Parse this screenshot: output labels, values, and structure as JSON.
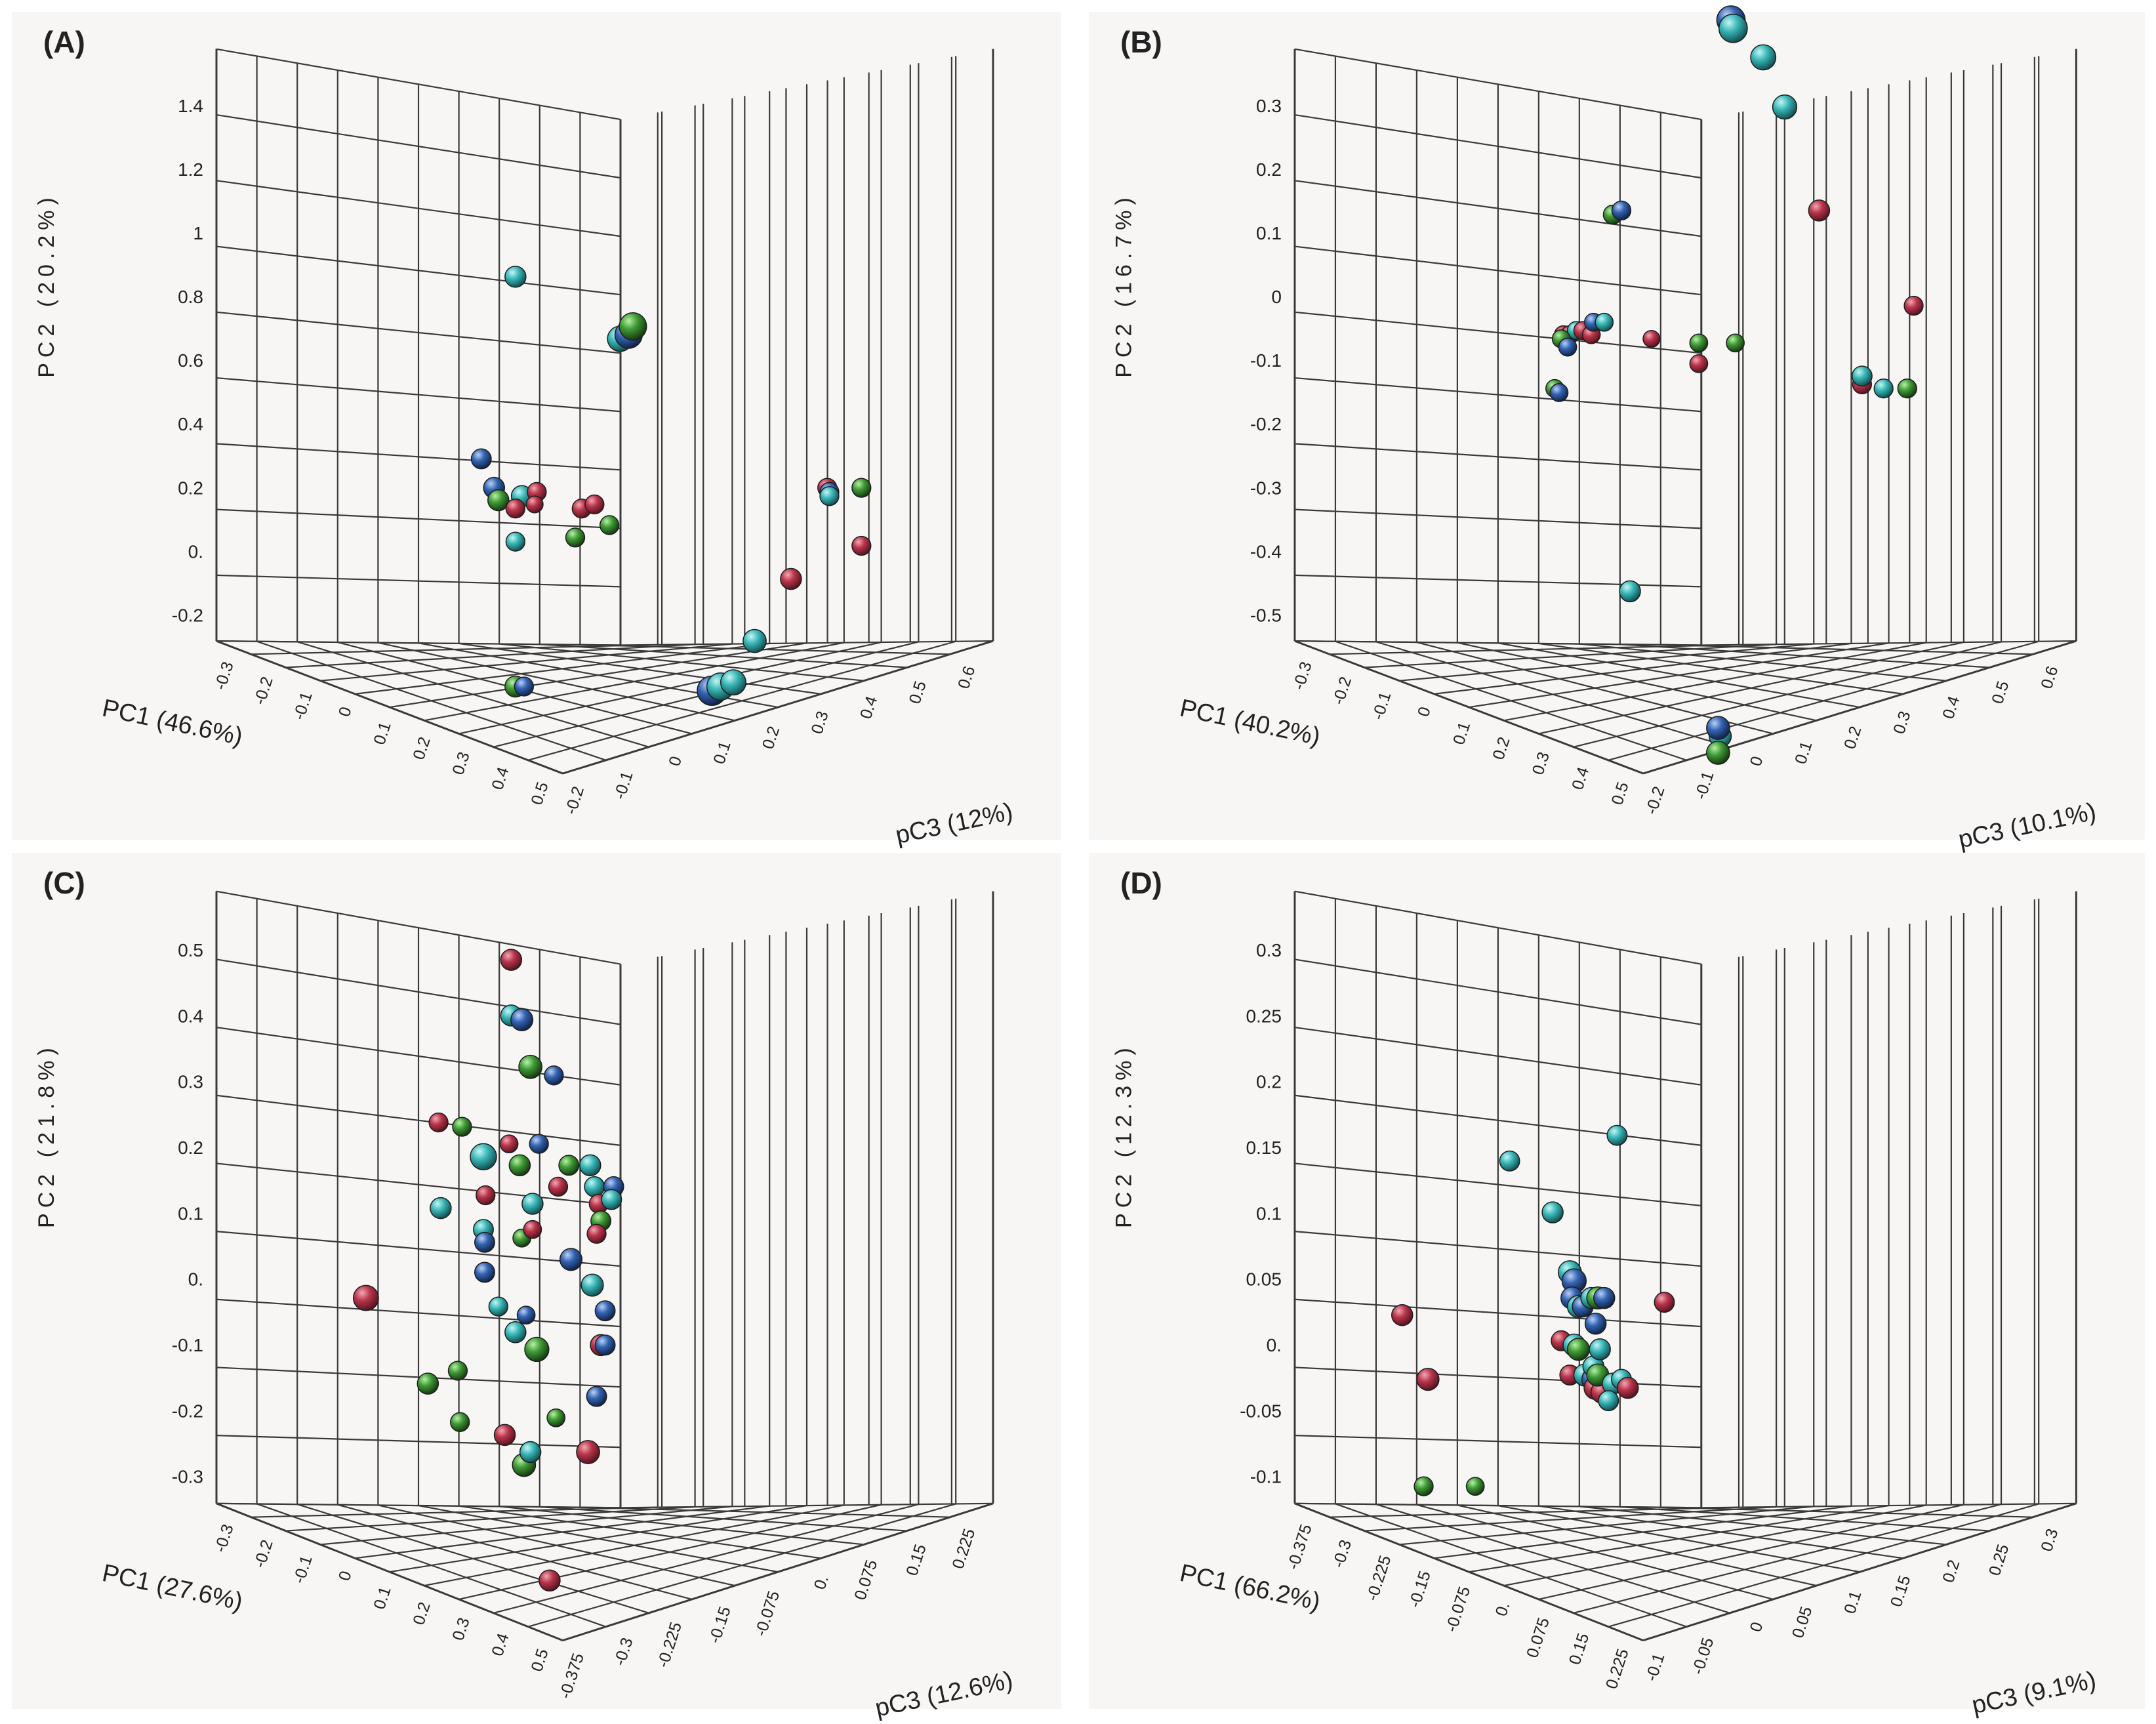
{
  "figure": {
    "description_panels": [
      "A",
      "B",
      "C",
      "D"
    ],
    "colors": {
      "background": "#f7f6f4",
      "grid": "#3a3a3a",
      "text": "#222222",
      "red": "#b8354a",
      "green": "#3f9a35",
      "cyan": "#3ab7b8",
      "blue": "#3363b2"
    }
  },
  "chart_data": [
    {
      "type": "scatter3d",
      "panel_label": "(A)",
      "xlabel": "PC1 (46.6%)",
      "ylabel": "PC2 (20.2%)",
      "zlabel": "pC3 (12%)",
      "y_ticks": [
        "1.4",
        "1.2",
        "1",
        "0.8",
        "0.6",
        "0.4",
        "0.2",
        "0.",
        "-0.2"
      ],
      "x_ticks": [
        "-0.3",
        "-0.2",
        "-0.1",
        "0",
        "0.1",
        "0.2",
        "0.3",
        "0.4",
        "0.5"
      ],
      "z_ticks": [
        "-0.2",
        "-0.1",
        "0",
        "0.1",
        "0.2",
        "0.3",
        "0.4",
        "0.5",
        "0.6"
      ],
      "points": [
        {
          "px": 0.7,
          "py": 0.32,
          "c": "cyan",
          "s": 1.0
        },
        {
          "px": 0.62,
          "py": 0.54,
          "c": "blue",
          "s": 0.95
        },
        {
          "px": 0.65,
          "py": 0.575,
          "c": "blue",
          "s": 1.0
        },
        {
          "px": 0.66,
          "py": 0.59,
          "c": "green",
          "s": 1.0
        },
        {
          "px": 0.715,
          "py": 0.585,
          "c": "cyan",
          "s": 1.0
        },
        {
          "px": 0.7,
          "py": 0.6,
          "c": "red",
          "s": 0.9
        },
        {
          "px": 0.7,
          "py": 0.64,
          "c": "cyan",
          "s": 0.9
        },
        {
          "px": 0.75,
          "py": 0.58,
          "c": "red",
          "s": 0.9
        },
        {
          "px": 0.745,
          "py": 0.595,
          "c": "red",
          "s": 0.8
        },
        {
          "px": 0.7,
          "py": 0.815,
          "c": "green",
          "s": 1.0
        },
        {
          "px": 0.72,
          "py": 0.815,
          "c": "blue",
          "s": 0.9
        },
        {
          "px": 0.84,
          "py": 0.635,
          "c": "green",
          "s": 0.9
        },
        {
          "px": 0.855,
          "py": 0.6,
          "c": "red",
          "s": 0.9
        },
        {
          "px": 0.885,
          "py": 0.595,
          "c": "red",
          "s": 0.9
        },
        {
          "px": 0.92,
          "py": 0.62,
          "c": "green",
          "s": 0.9
        },
        {
          "px": 0.945,
          "py": 0.395,
          "c": "cyan",
          "s": 1.2
        },
        {
          "px": 0.965,
          "py": 0.39,
          "c": "blue",
          "s": 1.3
        },
        {
          "px": 0.975,
          "py": 0.38,
          "c": "green",
          "s": 1.3
        },
        {
          "px": 1.16,
          "py": 0.82,
          "c": "blue",
          "s": 1.4
        },
        {
          "px": 1.18,
          "py": 0.815,
          "c": "cyan",
          "s": 1.3
        },
        {
          "px": 1.21,
          "py": 0.81,
          "c": "cyan",
          "s": 1.2
        },
        {
          "px": 1.26,
          "py": 0.76,
          "c": "cyan",
          "s": 1.1
        },
        {
          "px": 1.345,
          "py": 0.685,
          "c": "red",
          "s": 1.0
        },
        {
          "px": 1.43,
          "py": 0.575,
          "c": "red",
          "s": 0.9
        },
        {
          "px": 1.435,
          "py": 0.58,
          "c": "blue",
          "s": 0.9
        },
        {
          "px": 1.435,
          "py": 0.585,
          "c": "cyan",
          "s": 0.9
        },
        {
          "px": 1.51,
          "py": 0.575,
          "c": "green",
          "s": 0.9
        },
        {
          "px": 1.51,
          "py": 0.645,
          "c": "red",
          "s": 0.9
        }
      ]
    },
    {
      "type": "scatter3d",
      "panel_label": "(B)",
      "xlabel": "PC1 (40.2%)",
      "ylabel": "PC2 (16.7%)",
      "zlabel": "pC3 (10.1%)",
      "y_ticks": [
        "0.3",
        "0.2",
        "0.1",
        "0",
        "-0.1",
        "-0.2",
        "-0.3",
        "-0.4",
        "-0.5"
      ],
      "x_ticks": [
        "-0.3",
        "-0.2",
        "-0.1",
        "0",
        "0.1",
        "0.2",
        "0.3",
        "0.4",
        "0.5"
      ],
      "z_ticks": [
        "-0.2",
        "-0.1",
        "0",
        "0.1",
        "0.2",
        "0.3",
        "0.4",
        "0.5",
        "0.6"
      ],
      "points": [
        {
          "px": 0.74,
          "py": 0.245,
          "c": "green",
          "s": 0.9
        },
        {
          "px": 0.76,
          "py": 0.24,
          "c": "blue",
          "s": 0.9
        },
        {
          "px": 0.625,
          "py": 0.39,
          "c": "red",
          "s": 0.85
        },
        {
          "px": 0.64,
          "py": 0.39,
          "c": "red",
          "s": 0.85
        },
        {
          "px": 0.655,
          "py": 0.385,
          "c": "cyan",
          "s": 0.85
        },
        {
          "px": 0.67,
          "py": 0.385,
          "c": "red",
          "s": 0.85
        },
        {
          "px": 0.69,
          "py": 0.39,
          "c": "red",
          "s": 0.85
        },
        {
          "px": 0.695,
          "py": 0.375,
          "c": "blue",
          "s": 0.85
        },
        {
          "px": 0.72,
          "py": 0.375,
          "c": "cyan",
          "s": 0.85
        },
        {
          "px": 0.62,
          "py": 0.395,
          "c": "green",
          "s": 0.85
        },
        {
          "px": 0.635,
          "py": 0.405,
          "c": "blue",
          "s": 0.85
        },
        {
          "px": 0.605,
          "py": 0.455,
          "c": "green",
          "s": 0.85
        },
        {
          "px": 0.615,
          "py": 0.46,
          "c": "blue",
          "s": 0.85
        },
        {
          "px": 0.83,
          "py": 0.395,
          "c": "red",
          "s": 0.8
        },
        {
          "px": 0.94,
          "py": 0.4,
          "c": "green",
          "s": 0.85
        },
        {
          "px": 0.94,
          "py": 0.425,
          "c": "red",
          "s": 0.85
        },
        {
          "px": 1.025,
          "py": 0.4,
          "c": "green",
          "s": 0.85
        },
        {
          "px": 0.78,
          "py": 0.7,
          "c": "cyan",
          "s": 1.0
        },
        {
          "px": 0.99,
          "py": 0.875,
          "c": "cyan",
          "s": 1.05
        },
        {
          "px": 0.985,
          "py": 0.865,
          "c": "blue",
          "s": 1.1
        },
        {
          "px": 0.985,
          "py": 0.895,
          "c": "green",
          "s": 1.1
        },
        {
          "px": 1.015,
          "py": 0.01,
          "c": "blue",
          "s": 1.35
        },
        {
          "px": 1.02,
          "py": 0.02,
          "c": "cyan",
          "s": 1.35
        },
        {
          "px": 1.09,
          "py": 0.055,
          "c": "cyan",
          "s": 1.2
        },
        {
          "px": 1.14,
          "py": 0.115,
          "c": "cyan",
          "s": 1.15
        },
        {
          "px": 1.22,
          "py": 0.24,
          "c": "red",
          "s": 1.0
        },
        {
          "px": 1.32,
          "py": 0.45,
          "c": "red",
          "s": 0.9
        },
        {
          "px": 1.32,
          "py": 0.44,
          "c": "cyan",
          "s": 0.95
        },
        {
          "px": 1.37,
          "py": 0.455,
          "c": "cyan",
          "s": 0.9
        },
        {
          "px": 1.425,
          "py": 0.455,
          "c": "green",
          "s": 0.9
        },
        {
          "px": 1.44,
          "py": 0.355,
          "c": "red",
          "s": 0.9
        }
      ]
    },
    {
      "type": "scatter3d",
      "panel_label": "(C)",
      "xlabel": "PC1 (27.6%)",
      "ylabel": "PC2 (21.8%)",
      "zlabel": "pC3 (12.6%)",
      "y_ticks": [
        "0.5",
        "0.4",
        "0.3",
        "0.2",
        "0.1",
        "0.",
        "-0.1",
        "-0.2",
        "-0.3"
      ],
      "x_ticks": [
        "-0.3",
        "-0.2",
        "-0.1",
        "0",
        "0.1",
        "0.2",
        "0.3",
        "0.4",
        "0.5"
      ],
      "z_ticks": [
        "-0.375",
        "-0.3",
        "-0.225",
        "-0.15",
        "-0.075",
        "0.",
        "0.075",
        "0.15",
        "0.225"
      ],
      "points": [
        {
          "px": 0.35,
          "py": 0.52,
          "c": "red",
          "s": 1.2
        },
        {
          "px": 0.52,
          "py": 0.315,
          "c": "red",
          "s": 0.9
        },
        {
          "px": 0.525,
          "py": 0.415,
          "c": "cyan",
          "s": 1.0
        },
        {
          "px": 0.575,
          "py": 0.32,
          "c": "green",
          "s": 0.9
        },
        {
          "px": 0.495,
          "py": 0.62,
          "c": "green",
          "s": 1.0
        },
        {
          "px": 0.565,
          "py": 0.605,
          "c": "green",
          "s": 0.9
        },
        {
          "px": 0.57,
          "py": 0.665,
          "c": "green",
          "s": 0.9
        },
        {
          "px": 0.625,
          "py": 0.355,
          "c": "cyan",
          "s": 1.25
        },
        {
          "px": 0.63,
          "py": 0.4,
          "c": "red",
          "s": 0.9
        },
        {
          "px": 0.625,
          "py": 0.44,
          "c": "cyan",
          "s": 0.95
        },
        {
          "px": 0.628,
          "py": 0.455,
          "c": "blue",
          "s": 0.95
        },
        {
          "px": 0.628,
          "py": 0.49,
          "c": "blue",
          "s": 0.95
        },
        {
          "px": 0.66,
          "py": 0.53,
          "c": "cyan",
          "s": 0.9
        },
        {
          "px": 0.685,
          "py": 0.34,
          "c": "red",
          "s": 0.85
        },
        {
          "px": 0.69,
          "py": 0.125,
          "c": "red",
          "s": 1.0
        },
        {
          "px": 0.69,
          "py": 0.19,
          "c": "cyan",
          "s": 1.0
        },
        {
          "px": 0.715,
          "py": 0.195,
          "c": "blue",
          "s": 1.05
        },
        {
          "px": 0.7,
          "py": 0.56,
          "c": "cyan",
          "s": 1.0
        },
        {
          "px": 0.71,
          "py": 0.365,
          "c": "green",
          "s": 1.0
        },
        {
          "px": 0.715,
          "py": 0.45,
          "c": "green",
          "s": 0.85
        },
        {
          "px": 0.675,
          "py": 0.68,
          "c": "red",
          "s": 1.0
        },
        {
          "px": 0.72,
          "py": 0.715,
          "c": "green",
          "s": 1.1
        },
        {
          "px": 0.735,
          "py": 0.7,
          "c": "cyan",
          "s": 1.0
        },
        {
          "px": 0.735,
          "py": 0.25,
          "c": "green",
          "s": 1.1
        },
        {
          "px": 0.74,
          "py": 0.44,
          "c": "red",
          "s": 0.85
        },
        {
          "px": 0.74,
          "py": 0.41,
          "c": "cyan",
          "s": 1.0
        },
        {
          "px": 0.725,
          "py": 0.54,
          "c": "blue",
          "s": 0.85
        },
        {
          "px": 0.755,
          "py": 0.34,
          "c": "blue",
          "s": 0.9
        },
        {
          "px": 0.75,
          "py": 0.58,
          "c": "green",
          "s": 1.15
        },
        {
          "px": 0.78,
          "py": 0.85,
          "c": "red",
          "s": 1.0
        },
        {
          "px": 0.79,
          "py": 0.26,
          "c": "blue",
          "s": 0.9
        },
        {
          "px": 0.8,
          "py": 0.39,
          "c": "red",
          "s": 0.9
        },
        {
          "px": 0.795,
          "py": 0.66,
          "c": "green",
          "s": 0.85
        },
        {
          "px": 0.825,
          "py": 0.365,
          "c": "green",
          "s": 0.95
        },
        {
          "px": 0.83,
          "py": 0.475,
          "c": "blue",
          "s": 1.05
        },
        {
          "px": 0.875,
          "py": 0.365,
          "c": "cyan",
          "s": 1.0
        },
        {
          "px": 0.885,
          "py": 0.39,
          "c": "cyan",
          "s": 0.95
        },
        {
          "px": 0.88,
          "py": 0.505,
          "c": "cyan",
          "s": 1.05
        },
        {
          "px": 0.87,
          "py": 0.7,
          "c": "red",
          "s": 1.1
        },
        {
          "px": 0.895,
          "py": 0.41,
          "c": "red",
          "s": 0.9
        },
        {
          "px": 0.9,
          "py": 0.43,
          "c": "green",
          "s": 0.95
        },
        {
          "px": 0.89,
          "py": 0.445,
          "c": "red",
          "s": 0.9
        },
        {
          "px": 0.91,
          "py": 0.535,
          "c": "blue",
          "s": 0.95
        },
        {
          "px": 0.9,
          "py": 0.575,
          "c": "red",
          "s": 1.0
        },
        {
          "px": 0.91,
          "py": 0.575,
          "c": "blue",
          "s": 0.95
        },
        {
          "px": 0.89,
          "py": 0.635,
          "c": "blue",
          "s": 0.95
        },
        {
          "px": 0.93,
          "py": 0.39,
          "c": "blue",
          "s": 0.95
        },
        {
          "px": 0.925,
          "py": 0.405,
          "c": "cyan",
          "s": 0.95
        }
      ]
    },
    {
      "type": "scatter3d",
      "panel_label": "(D)",
      "xlabel": "PC1 (66.2%)",
      "ylabel": "PC2 (12.3%)",
      "zlabel": "pC3 (9.1%)",
      "y_ticks": [
        "0.3",
        "0.25",
        "0.2",
        "0.15",
        "0.1",
        "0.05",
        "0.",
        "-0.05",
        "-0.1"
      ],
      "x_ticks": [
        "-0.375",
        "-0.3",
        "-0.225",
        "-0.15",
        "-0.075",
        "0.",
        "0.075",
        "0.15",
        "0.225"
      ],
      "z_ticks": [
        "-0.1",
        "-0.05",
        "0",
        "0.05",
        "0.1",
        "0.15",
        "0.2",
        "0.25",
        "0.3"
      ],
      "points": [
        {
          "px": 0.25,
          "py": 0.54,
          "c": "red",
          "s": 1.0
        },
        {
          "px": 0.31,
          "py": 0.615,
          "c": "red",
          "s": 1.05
        },
        {
          "px": 0.3,
          "py": 0.74,
          "c": "green",
          "s": 0.9
        },
        {
          "px": 0.42,
          "py": 0.74,
          "c": "green",
          "s": 0.85
        },
        {
          "px": 0.5,
          "py": 0.36,
          "c": "cyan",
          "s": 0.95
        },
        {
          "px": 0.6,
          "py": 0.42,
          "c": "cyan",
          "s": 1.0
        },
        {
          "px": 0.75,
          "py": 0.33,
          "c": "cyan",
          "s": 0.95
        },
        {
          "px": 0.62,
          "py": 0.57,
          "c": "red",
          "s": 0.95
        },
        {
          "px": 0.64,
          "py": 0.49,
          "c": "cyan",
          "s": 1.1
        },
        {
          "px": 0.65,
          "py": 0.5,
          "c": "blue",
          "s": 1.15
        },
        {
          "px": 0.645,
          "py": 0.52,
          "c": "blue",
          "s": 1.05
        },
        {
          "px": 0.66,
          "py": 0.53,
          "c": "cyan",
          "s": 1.05
        },
        {
          "px": 0.67,
          "py": 0.53,
          "c": "blue",
          "s": 1.0
        },
        {
          "px": 0.65,
          "py": 0.575,
          "c": "cyan",
          "s": 1.05
        },
        {
          "px": 0.69,
          "py": 0.52,
          "c": "cyan",
          "s": 1.0
        },
        {
          "px": 0.7,
          "py": 0.55,
          "c": "blue",
          "s": 1.0
        },
        {
          "px": 0.705,
          "py": 0.52,
          "c": "green",
          "s": 1.05
        },
        {
          "px": 0.72,
          "py": 0.52,
          "c": "blue",
          "s": 1.0
        },
        {
          "px": 0.66,
          "py": 0.58,
          "c": "green",
          "s": 1.05
        },
        {
          "px": 0.64,
          "py": 0.61,
          "c": "red",
          "s": 0.95
        },
        {
          "px": 0.675,
          "py": 0.61,
          "c": "cyan",
          "s": 1.05
        },
        {
          "px": 0.695,
          "py": 0.615,
          "c": "blue",
          "s": 1.1
        },
        {
          "px": 0.7,
          "py": 0.625,
          "c": "red",
          "s": 1.1
        },
        {
          "px": 0.715,
          "py": 0.63,
          "c": "red",
          "s": 1.05
        },
        {
          "px": 0.695,
          "py": 0.6,
          "c": "cyan",
          "s": 1.0
        },
        {
          "px": 0.71,
          "py": 0.58,
          "c": "cyan",
          "s": 1.0
        },
        {
          "px": 0.705,
          "py": 0.61,
          "c": "green",
          "s": 1.05
        },
        {
          "px": 0.74,
          "py": 0.62,
          "c": "cyan",
          "s": 1.0
        },
        {
          "px": 0.76,
          "py": 0.615,
          "c": "cyan",
          "s": 0.95
        },
        {
          "px": 0.73,
          "py": 0.64,
          "c": "cyan",
          "s": 0.95
        },
        {
          "px": 0.775,
          "py": 0.625,
          "c": "red",
          "s": 1.0
        },
        {
          "px": 0.86,
          "py": 0.525,
          "c": "red",
          "s": 0.95
        }
      ]
    }
  ]
}
